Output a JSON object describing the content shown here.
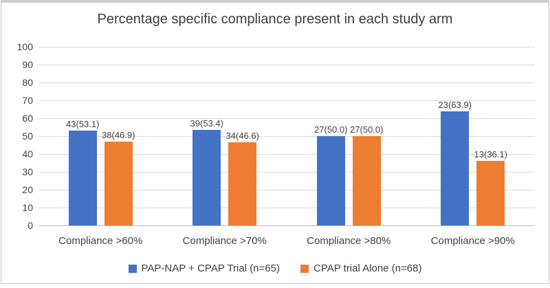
{
  "chart_data": {
    "type": "bar",
    "title": "Percentage specific compliance present in each study arm",
    "categories": [
      "Compliance >60%",
      "Compliance >70%",
      "Compliance >80%",
      "Compliance >90%"
    ],
    "series": [
      {
        "name": "PAP-NAP + CPAP Trial (n=65)",
        "color": "#4472C4",
        "counts": [
          43,
          39,
          27,
          23
        ],
        "values": [
          53.1,
          53.4,
          50.0,
          63.9
        ],
        "data_labels": [
          "43(53.1)",
          "39(53.4)",
          "27(50.0)",
          "23(63.9)"
        ]
      },
      {
        "name": "CPAP trial Alone (n=68)",
        "color": "#ED7D31",
        "counts": [
          38,
          34,
          27,
          13
        ],
        "values": [
          46.9,
          46.6,
          50.0,
          36.1
        ],
        "data_labels": [
          "38(46.9)",
          "34(46.6)",
          "27(50.0)",
          "13(36.1)"
        ]
      }
    ],
    "ylim": [
      0,
      100
    ],
    "yticks": [
      0,
      10,
      20,
      30,
      40,
      50,
      60,
      70,
      80,
      90,
      100
    ],
    "grid": true,
    "legend_position": "bottom",
    "gridline_color": "#d9d9d9",
    "axis_line_color": "#bdbdbd",
    "text_color": "#404040"
  }
}
